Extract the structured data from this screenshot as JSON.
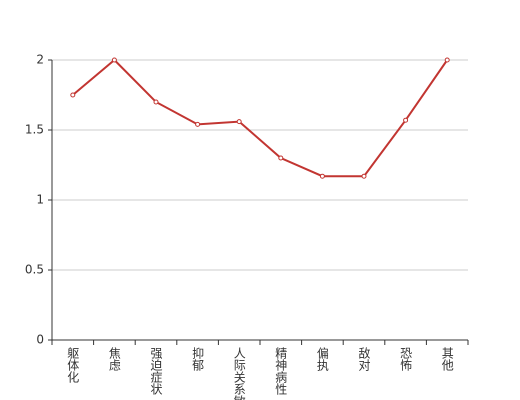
{
  "chart_data": {
    "type": "line",
    "categories": [
      "躯体化",
      "焦虑",
      "强迫症状",
      "抑郁",
      "人际关系敏感",
      "精神病性",
      "偏执",
      "敌对",
      "恐怖",
      "其他"
    ],
    "values": [
      1.75,
      2,
      1.7,
      1.54,
      1.56,
      1.3,
      1.17,
      1.17,
      1.57,
      2
    ],
    "color": "#c23531",
    "ylim": [
      0,
      2
    ],
    "yticks": [
      0,
      0.5,
      1,
      1.5,
      2
    ],
    "grid": true
  }
}
